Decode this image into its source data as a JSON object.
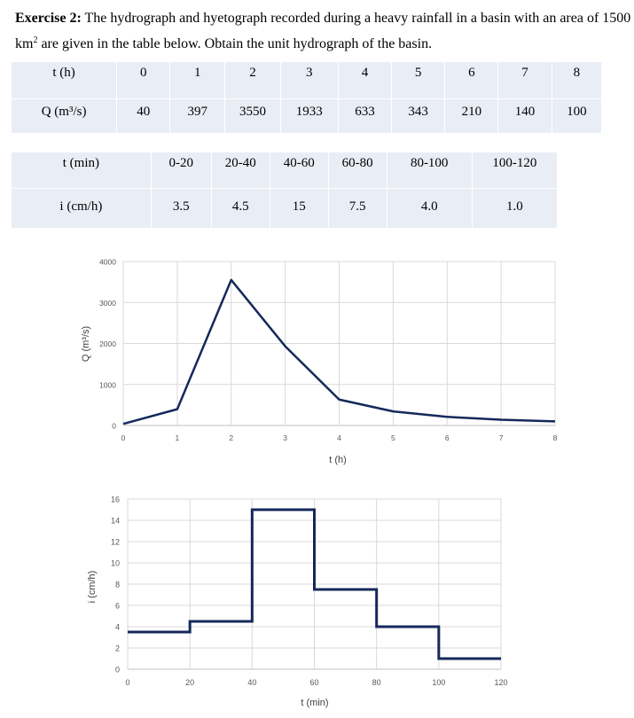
{
  "problem": {
    "label": "Exercise 2:",
    "text_part1": " The hydrograph and hyetograph recorded during a heavy rainfall in a basin with an area of 1500 km",
    "superscript": "2",
    "text_part2": " are given in the table below. Obtain the unit hydrograph of the basin."
  },
  "table_hydrograph": {
    "row_headers": [
      "t (h)",
      "Q (m³/s)"
    ],
    "t": [
      "0",
      "1",
      "2",
      "3",
      "4",
      "5",
      "6",
      "7",
      "8"
    ],
    "Q": [
      "40",
      "397",
      "3550",
      "1933",
      "633",
      "343",
      "210",
      "140",
      "100"
    ]
  },
  "table_hyetograph": {
    "row_headers": [
      "t (min)",
      "i (cm/h)"
    ],
    "t": [
      "0-20",
      "20-40",
      "40-60",
      "60-80",
      "80-100",
      "100-120"
    ],
    "i": [
      "3.5",
      "4.5",
      "15",
      "7.5",
      "4.0",
      "1.0"
    ]
  },
  "colors": {
    "line": "#14285a",
    "grid": "#d9d9d9",
    "table_bg": "#e9edf5"
  },
  "chart_data": [
    {
      "type": "line",
      "title": "",
      "xlabel": "t (h)",
      "ylabel": "Q (m³/s)",
      "x": [
        0,
        1,
        2,
        3,
        4,
        5,
        6,
        7,
        8
      ],
      "series": [
        {
          "name": "Q",
          "values": [
            40,
            397,
            3550,
            1933,
            633,
            343,
            210,
            140,
            100
          ]
        }
      ],
      "xlim": [
        0,
        8
      ],
      "ylim": [
        0,
        4000
      ],
      "xticks": [
        "0",
        "1",
        "2",
        "3",
        "4",
        "5",
        "6",
        "7",
        "8"
      ],
      "yticks": [
        "0",
        "1000",
        "2000",
        "3000",
        "4000"
      ],
      "grid": true,
      "legend": "none"
    },
    {
      "type": "line",
      "subtype": "step",
      "title": "",
      "xlabel": "t (min)",
      "ylabel": "i (cm/h)",
      "x": [
        0,
        20,
        40,
        60,
        80,
        100,
        120
      ],
      "series": [
        {
          "name": "i",
          "values": [
            3.5,
            4.5,
            15,
            7.5,
            4.0,
            1.0
          ]
        }
      ],
      "xlim": [
        0,
        120
      ],
      "ylim": [
        0,
        16
      ],
      "xticks": [
        "0",
        "20",
        "40",
        "60",
        "80",
        "100",
        "120"
      ],
      "yticks": [
        "0",
        "2",
        "4",
        "6",
        "8",
        "10",
        "12",
        "14",
        "16"
      ],
      "grid": true,
      "legend": "none"
    }
  ]
}
